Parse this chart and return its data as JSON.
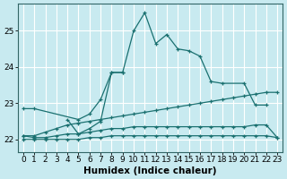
{
  "xlabel": "Humidex (Indice chaleur)",
  "ylabel": "",
  "xlim": [
    -0.5,
    23.5
  ],
  "ylim": [
    21.65,
    25.75
  ],
  "bg_color": "#c8eaf0",
  "line_color": "#1a7070",
  "grid_color": "#ffffff",
  "lines": [
    {
      "x": [
        0,
        1,
        5,
        6,
        7,
        8,
        9,
        10,
        11,
        12,
        13,
        14,
        15,
        16,
        17,
        18,
        20,
        21,
        22
      ],
      "y": [
        22.85,
        22.85,
        22.55,
        22.7,
        23.1,
        23.85,
        23.85,
        25.0,
        25.5,
        24.65,
        24.9,
        24.5,
        24.45,
        24.3,
        23.6,
        23.55,
        23.55,
        22.95,
        22.95
      ]
    },
    {
      "x": [
        4,
        5,
        6,
        7,
        8,
        9
      ],
      "y": [
        22.55,
        22.15,
        22.3,
        22.5,
        23.85,
        23.85
      ]
    },
    {
      "x": [
        0,
        1,
        2,
        3,
        4,
        5,
        6,
        7,
        8,
        9,
        10,
        11,
        12,
        13,
        14,
        15,
        16,
        17,
        18,
        19,
        20,
        21,
        22,
        23
      ],
      "y": [
        22.1,
        22.1,
        22.2,
        22.3,
        22.4,
        22.45,
        22.5,
        22.55,
        22.6,
        22.65,
        22.7,
        22.75,
        22.8,
        22.85,
        22.9,
        22.95,
        23.0,
        23.05,
        23.1,
        23.15,
        23.2,
        23.25,
        23.3,
        23.3
      ]
    },
    {
      "x": [
        0,
        1,
        2,
        3,
        4,
        5,
        6,
        7,
        8,
        9,
        10,
        11,
        12,
        13,
        14,
        15,
        16,
        17,
        18,
        19,
        20,
        21,
        22,
        23
      ],
      "y": [
        22.1,
        22.05,
        22.05,
        22.1,
        22.15,
        22.15,
        22.2,
        22.25,
        22.3,
        22.3,
        22.35,
        22.35,
        22.35,
        22.35,
        22.35,
        22.35,
        22.35,
        22.35,
        22.35,
        22.35,
        22.35,
        22.4,
        22.4,
        22.05
      ]
    },
    {
      "x": [
        0,
        1,
        2,
        3,
        4,
        5,
        6,
        7,
        8,
        9,
        10,
        11,
        12,
        13,
        14,
        15,
        16,
        17,
        18,
        19,
        20,
        21,
        22,
        23
      ],
      "y": [
        22.0,
        22.0,
        22.0,
        22.0,
        22.0,
        22.0,
        22.05,
        22.05,
        22.1,
        22.1,
        22.1,
        22.1,
        22.1,
        22.1,
        22.1,
        22.1,
        22.1,
        22.1,
        22.1,
        22.1,
        22.1,
        22.1,
        22.1,
        22.05
      ]
    }
  ],
  "xtick_labels": [
    "0",
    "1",
    "2",
    "3",
    "4",
    "5",
    "6",
    "7",
    "8",
    "9",
    "10",
    "11",
    "12",
    "13",
    "14",
    "15",
    "16",
    "17",
    "18",
    "19",
    "20",
    "21",
    "22",
    "23"
  ],
  "yticks": [
    22,
    23,
    24,
    25
  ],
  "tick_fontsize": 6.5,
  "label_fontsize": 7.5
}
